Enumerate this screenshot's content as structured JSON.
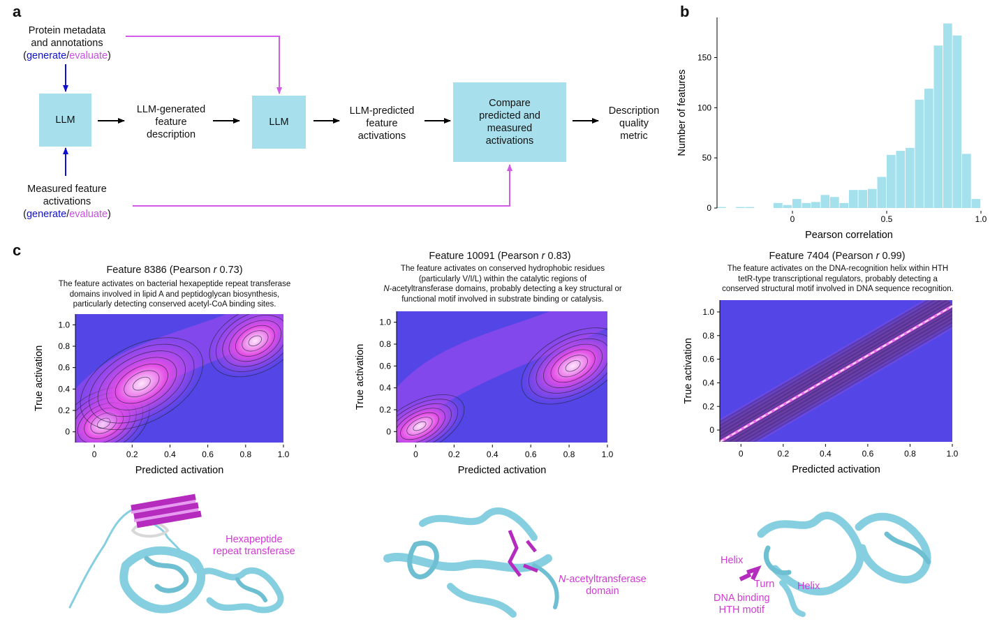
{
  "panels": {
    "a": "a",
    "b": "b",
    "c": "c"
  },
  "flow": {
    "metadata_line1": "Protein metadata",
    "metadata_line2": "and annotations",
    "measured_line1": "Measured feature",
    "measured_line2": "activations",
    "paren_open": "(",
    "generate": "generate",
    "slash": "/",
    "evaluate": "evaluate",
    "paren_close": ")",
    "llm1": "LLM",
    "desc_line1": "LLM-generated",
    "desc_line2": "feature",
    "desc_line3": "description",
    "llm2": "LLM",
    "pred_line1": "LLM-predicted",
    "pred_line2": "feature",
    "pred_line3": "activations",
    "compare_line1": "Compare",
    "compare_line2": "predicted and",
    "compare_line3": "measured",
    "compare_line4": "activations",
    "metric_line1": "Description",
    "metric_line2": "quality",
    "metric_line3": "metric",
    "colors": {
      "generate": "#1010d0",
      "evaluate": "#c94fe0",
      "box": "#a7e0ec"
    }
  },
  "chart_data": [
    {
      "type": "bar",
      "panel": "b",
      "xlabel": "Pearson correlation",
      "ylabel": "Number of features",
      "xlim": [
        -0.4,
        1.0
      ],
      "ylim": [
        0,
        190
      ],
      "xticks": [
        0,
        0.5,
        1.0
      ],
      "yticks": [
        0,
        50,
        100,
        150
      ],
      "bin_width": 0.05,
      "bin_starts": [
        -0.4,
        -0.35,
        -0.3,
        -0.25,
        -0.2,
        -0.15,
        -0.1,
        -0.05,
        0.0,
        0.05,
        0.1,
        0.15,
        0.2,
        0.25,
        0.3,
        0.35,
        0.4,
        0.45,
        0.5,
        0.55,
        0.6,
        0.65,
        0.7,
        0.75,
        0.8,
        0.85,
        0.9,
        0.95
      ],
      "values": [
        1,
        0,
        1,
        1,
        0,
        0,
        5,
        3,
        9,
        5,
        6,
        13,
        11,
        5,
        18,
        18,
        19,
        31,
        53,
        57,
        60,
        108,
        119,
        162,
        184,
        172,
        54,
        9
      ],
      "bar_color": "#a5e1ed"
    },
    {
      "type": "heatmap",
      "panel": "c1",
      "title_prefix": "Feature 8386 (Pearson ",
      "title_r": "r",
      "title_suffix": " 0.73)",
      "desc_line1": "The feature activates on bacterial hexapeptide repeat transferase",
      "desc_line2": "domains involved in lipid A and peptidoglycan biosynthesis,",
      "desc_line3": "particularly detecting conserved acetyl-CoA binding sites.",
      "xlabel": "Predicted activation",
      "ylabel": "True activation",
      "xlim": [
        -0.1,
        1.0
      ],
      "ylim": [
        -0.1,
        1.1
      ],
      "xticks": [
        "0",
        "0.2",
        "0.4",
        "0.6",
        "0.8",
        "1.0"
      ],
      "yticks": [
        "0",
        "0.2",
        "0.4",
        "0.6",
        "0.8",
        "1.0"
      ],
      "density_peaks": [
        {
          "x": 0.05,
          "y": 0.08
        },
        {
          "x": 0.25,
          "y": 0.45
        },
        {
          "x": 0.85,
          "y": 0.85
        }
      ]
    },
    {
      "type": "heatmap",
      "panel": "c2",
      "title_prefix": "Feature 10091 (Pearson ",
      "title_r": "r",
      "title_suffix": " 0.83)",
      "desc_line1": "The feature activates on conserved hydrophobic residues",
      "desc_line2": "(particularly V/I/L) within the catalytic regions of",
      "desc_line3_italic": "N",
      "desc_line3_rest": "-acetyltransferase domains, probably detecting a key structural or",
      "desc_line4": "functional motif involved in substrate binding or catalysis.",
      "xlabel": "Predicted activation",
      "ylabel": "True activation",
      "xlim": [
        -0.1,
        1.0
      ],
      "ylim": [
        -0.1,
        1.1
      ],
      "xticks": [
        "0",
        "0.2",
        "0.4",
        "0.6",
        "0.8",
        "1.0"
      ],
      "yticks": [
        "0",
        "0.2",
        "0.4",
        "0.6",
        "0.8",
        "1.0"
      ],
      "density_peaks": [
        {
          "x": 0.02,
          "y": 0.05
        },
        {
          "x": 0.82,
          "y": 0.6
        }
      ]
    },
    {
      "type": "heatmap",
      "panel": "c3",
      "title_prefix": "Feature 7404 (Pearson ",
      "title_r": "r",
      "title_suffix": " 0.99)",
      "desc_line1": "The feature activates on the DNA-recognition helix within HTH",
      "desc_line2": "tetR-type transcriptional regulators, probably detecting a",
      "desc_line3": "conserved structural motif involved in DNA sequence recognition.",
      "xlabel": "Predicted activation",
      "ylabel": "True activation",
      "xlim": [
        -0.1,
        1.0
      ],
      "ylim": [
        -0.1,
        1.1
      ],
      "xticks": [
        "0",
        "0.2",
        "0.4",
        "0.6",
        "0.8",
        "1.0"
      ],
      "yticks": [
        "0",
        "0.2",
        "0.4",
        "0.6",
        "0.8",
        "1.0"
      ],
      "density_peaks": [
        {
          "x": 0.0,
          "y": 0.0
        },
        {
          "x": 1.0,
          "y": 1.0
        }
      ]
    }
  ],
  "structures": {
    "s1_label_line1": "Hexapeptide",
    "s1_label_line2": "repeat transferase",
    "s2_label_italic": "N",
    "s2_label_line1_rest": "-acetyltransferase",
    "s2_label_line2": "domain",
    "s3_helix1": "Helix",
    "s3_turn": "Turn",
    "s3_helix2": "Helix",
    "s3_dna_line1": "DNA binding",
    "s3_dna_line2": "HTH motif",
    "colors": {
      "ribbon": "#86cfe0",
      "highlight": "#b42bbe",
      "annotation": "#d23ad6"
    }
  }
}
